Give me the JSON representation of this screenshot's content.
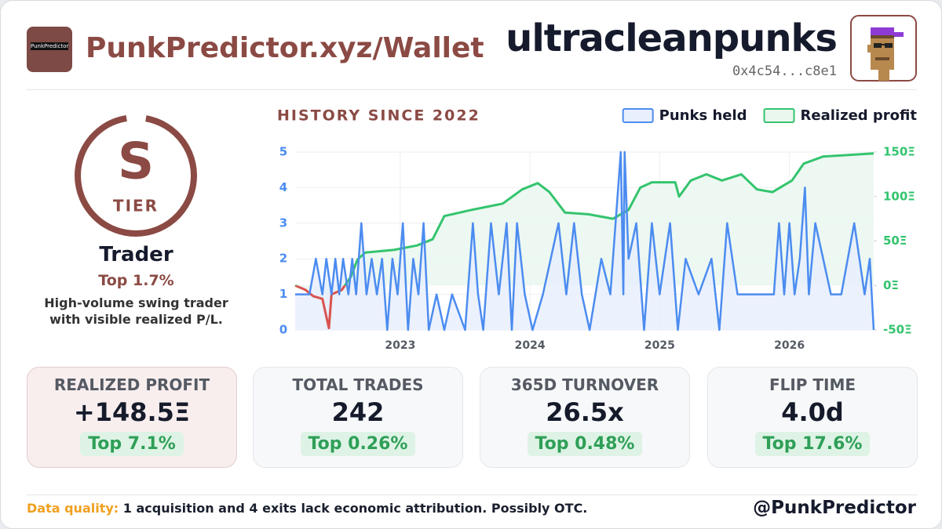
{
  "header": {
    "logo_text": "PunkPredictor",
    "brand": "PunkPredictor.xyz/Wallet",
    "wallet_name": "ultracleanpunks",
    "address": "0x4c54...c8e1"
  },
  "tier": {
    "grade": "S",
    "label": "TIER",
    "archetype": "Trader",
    "rank": "Top 1.7%",
    "description": "High-volume swing trader with visible realized P/L."
  },
  "chart_data": {
    "type": "line",
    "title": "HISTORY SINCE 2022",
    "legend": "top-right",
    "grid": true,
    "xlim": [
      2022.19,
      2026.65
    ],
    "xticks": [
      2023,
      2024,
      2025,
      2026
    ],
    "ylim": [
      0,
      5
    ],
    "yticks": [
      0,
      1,
      2,
      3,
      4,
      5
    ],
    "y2lim": [
      -50,
      150
    ],
    "y2ticks": [
      {
        "value": -50,
        "label": "-50Ξ"
      },
      {
        "value": 0,
        "label": "0Ξ"
      },
      {
        "value": 50,
        "label": "50Ξ"
      },
      {
        "value": 100,
        "label": "100Ξ"
      },
      {
        "value": 150,
        "label": "150Ξ"
      }
    ],
    "series": [
      {
        "name": "Punks held",
        "color": "#4c8cf0",
        "fill": "#e8effd",
        "x": [
          2022.19,
          2022.3,
          2022.35,
          2022.4,
          2022.43,
          2022.47,
          2022.5,
          2022.53,
          2022.56,
          2022.6,
          2022.63,
          2022.66,
          2022.7,
          2022.74,
          2022.78,
          2022.82,
          2022.86,
          2022.9,
          2022.94,
          2022.98,
          2023.02,
          2023.06,
          2023.1,
          2023.14,
          2023.18,
          2023.22,
          2023.28,
          2023.34,
          2023.4,
          2023.5,
          2023.56,
          2023.6,
          2023.64,
          2023.7,
          2023.76,
          2023.82,
          2023.86,
          2023.9,
          2023.96,
          2024.02,
          2024.1,
          2024.22,
          2024.28,
          2024.34,
          2024.4,
          2024.46,
          2024.55,
          2024.62,
          2024.7,
          2024.72,
          2024.73,
          2024.76,
          2024.82,
          2024.88,
          2024.94,
          2025.0,
          2025.08,
          2025.14,
          2025.2,
          2025.3,
          2025.4,
          2025.46,
          2025.52,
          2025.6,
          2025.7,
          2025.8,
          2025.88,
          2025.92,
          2025.96,
          2026.0,
          2026.04,
          2026.08,
          2026.12,
          2026.15,
          2026.2,
          2026.26,
          2026.32,
          2026.4,
          2026.5,
          2026.58,
          2026.62,
          2026.65
        ],
        "values": [
          1,
          1,
          2,
          1,
          2,
          1,
          2,
          1,
          2,
          1,
          2,
          1,
          3,
          1,
          2,
          1,
          2,
          0,
          2,
          1,
          3,
          0,
          2,
          1,
          3,
          0,
          1,
          0,
          1,
          0,
          3,
          1,
          0,
          3,
          1,
          3,
          0,
          3,
          1,
          0,
          1,
          3,
          1,
          3,
          1,
          0,
          2,
          1,
          5,
          1,
          5,
          2,
          3,
          0,
          3,
          1,
          3,
          0,
          2,
          1,
          2,
          0,
          3,
          1,
          1,
          1,
          1,
          3,
          1,
          3,
          1,
          2,
          4,
          1,
          3,
          2,
          1,
          1,
          3,
          1,
          2,
          0
        ]
      },
      {
        "name": "Realized profit",
        "color": "#34c46e",
        "fill": "#e9f7ee",
        "negative_color": "#d9534f",
        "axis": "y2",
        "x": [
          2022.19,
          2022.27,
          2022.33,
          2022.4,
          2022.45,
          2022.47,
          2022.55,
          2022.62,
          2022.67,
          2022.73,
          2022.95,
          2023.13,
          2023.25,
          2023.34,
          2023.55,
          2023.79,
          2023.94,
          2024.06,
          2024.15,
          2024.27,
          2024.45,
          2024.64,
          2024.76,
          2024.85,
          2024.94,
          2025.12,
          2025.15,
          2025.24,
          2025.36,
          2025.48,
          2025.63,
          2025.75,
          2025.87,
          2026.02,
          2026.11,
          2026.26,
          2026.65
        ],
        "values": [
          0,
          -5,
          -12,
          -15,
          -48,
          -10,
          -5,
          10,
          29,
          37,
          40,
          45,
          52,
          78,
          85,
          92,
          108,
          115,
          105,
          82,
          80,
          75,
          85,
          110,
          116,
          116,
          100,
          118,
          125,
          118,
          125,
          108,
          105,
          118,
          137,
          145,
          148.5
        ]
      }
    ]
  },
  "stats": [
    {
      "label": "REALIZED PROFIT",
      "value": "+148.5Ξ",
      "rank": "Top 7.1%"
    },
    {
      "label": "TOTAL TRADES",
      "value": "242",
      "rank": "Top 0.26%"
    },
    {
      "label": "365D TURNOVER",
      "value": "26.5x",
      "rank": "Top 0.48%"
    },
    {
      "label": "FLIP TIME",
      "value": "4.0d",
      "rank": "Top 17.6%"
    }
  ],
  "footer": {
    "note_label": "Data quality:",
    "note": "1 acquisition and 4 exits lack economic attribution. Possibly OTC.",
    "handle": "@PunkPredictor"
  }
}
